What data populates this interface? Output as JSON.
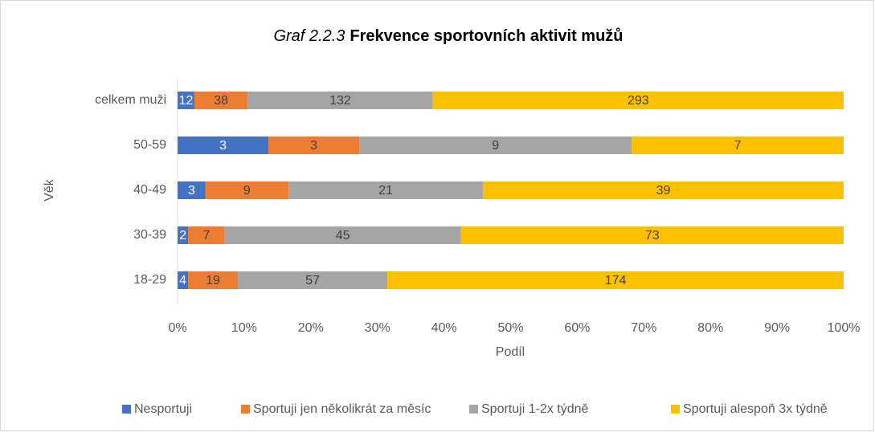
{
  "chart_data": {
    "type": "bar",
    "orientation": "horizontal",
    "stacked": "percent",
    "title": {
      "prefix": "Graf 2.2.3",
      "main": "Frekvence sportovních aktivit mužů"
    },
    "ylabel": "Věk",
    "xlabel": "Podíl",
    "categories": [
      "celkem muži",
      "50-59",
      "40-49",
      "30-39",
      "18-29"
    ],
    "series": [
      {
        "name": "Nesportuji",
        "color": "#4472c4",
        "label_color": "#ffffff",
        "values": [
          12,
          3,
          3,
          2,
          4
        ]
      },
      {
        "name": "Sportuji jen několikrát za měsíc",
        "color": "#ed7d31",
        "label_color": "#404040",
        "values": [
          38,
          3,
          9,
          7,
          19
        ]
      },
      {
        "name": "Sportuji 1-2x týdně",
        "color": "#a5a5a5",
        "label_color": "#404040",
        "values": [
          132,
          9,
          21,
          45,
          57
        ]
      },
      {
        "name": "Sportuji alespoň 3x týdně",
        "color": "#ffc000",
        "label_color": "#404040",
        "values": [
          293,
          7,
          39,
          73,
          174
        ]
      }
    ],
    "xlim": [
      0,
      100
    ],
    "xticks": [
      {
        "value": 0,
        "label": "0%"
      },
      {
        "value": 10,
        "label": "10%"
      },
      {
        "value": 20,
        "label": "20%"
      },
      {
        "value": 30,
        "label": "30%"
      },
      {
        "value": 40,
        "label": "40%"
      },
      {
        "value": 50,
        "label": "50%"
      },
      {
        "value": 60,
        "label": "60%"
      },
      {
        "value": 70,
        "label": "70%"
      },
      {
        "value": 80,
        "label": "80%"
      },
      {
        "value": 90,
        "label": "90%"
      },
      {
        "value": 100,
        "label": "100%"
      }
    ],
    "legend": "bottom"
  }
}
